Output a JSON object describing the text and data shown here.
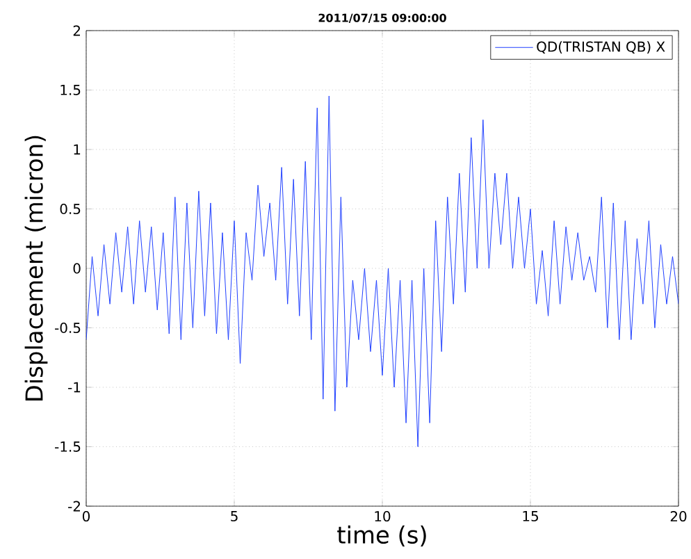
{
  "chart_data": {
    "type": "line",
    "title": "2011/07/15 09:00:00",
    "xlabel": "time (s)",
    "ylabel": "Displacement (micron)",
    "xlim": [
      0,
      20
    ],
    "ylim": [
      -2,
      2
    ],
    "xticks": [
      0,
      5,
      10,
      15,
      20
    ],
    "yticks": [
      -2,
      -1.5,
      -1,
      -0.5,
      0,
      0.5,
      1,
      1.5,
      2
    ],
    "grid": true,
    "legend": "top right",
    "marker": "none",
    "line_style": "solid",
    "series": [
      {
        "name": "QD(TRISTAN QB) X",
        "color": "#1f3fff",
        "x": [
          0,
          0.2,
          0.4,
          0.6,
          0.8,
          1,
          1.2,
          1.4,
          1.6,
          1.8,
          2,
          2.2,
          2.4,
          2.6,
          2.8,
          3,
          3.2,
          3.4,
          3.6,
          3.8,
          4,
          4.2,
          4.4,
          4.6,
          4.8,
          5,
          5.2,
          5.4,
          5.6,
          5.8,
          6,
          6.2,
          6.4,
          6.6,
          6.8,
          7,
          7.2,
          7.4,
          7.6,
          7.8,
          8,
          8.2,
          8.4,
          8.6,
          8.8,
          9,
          9.2,
          9.4,
          9.6,
          9.8,
          10,
          10.2,
          10.4,
          10.6,
          10.8,
          11,
          11.2,
          11.4,
          11.6,
          11.8,
          12,
          12.2,
          12.4,
          12.6,
          12.8,
          13,
          13.2,
          13.4,
          13.6,
          13.8,
          14,
          14.2,
          14.4,
          14.6,
          14.8,
          15,
          15.2,
          15.4,
          15.6,
          15.8,
          16,
          16.2,
          16.4,
          16.6,
          16.8,
          17,
          17.2,
          17.4,
          17.6,
          17.8,
          18,
          18.2,
          18.4,
          18.6,
          18.8,
          19,
          19.2,
          19.4,
          19.6,
          19.8,
          20
        ],
        "values": [
          -0.6,
          0.1,
          -0.4,
          0.2,
          -0.3,
          0.3,
          -0.2,
          0.35,
          -0.3,
          0.4,
          -0.2,
          0.35,
          -0.35,
          0.3,
          -0.55,
          0.6,
          -0.6,
          0.55,
          -0.5,
          0.65,
          -0.4,
          0.55,
          -0.55,
          0.3,
          -0.6,
          0.4,
          -0.8,
          0.3,
          -0.1,
          0.7,
          0.1,
          0.55,
          -0.1,
          0.85,
          -0.3,
          0.75,
          -0.4,
          0.9,
          -0.6,
          1.35,
          -1.1,
          1.45,
          -1.2,
          0.6,
          -1.0,
          -0.1,
          -0.6,
          0.0,
          -0.7,
          -0.1,
          -0.9,
          0.0,
          -1.0,
          -0.1,
          -1.3,
          -0.1,
          -1.5,
          0.0,
          -1.3,
          0.4,
          -0.7,
          0.6,
          -0.3,
          0.8,
          -0.2,
          1.1,
          0.0,
          1.25,
          0.0,
          0.8,
          0.2,
          0.8,
          0.0,
          0.6,
          0.0,
          0.5,
          -0.3,
          0.15,
          -0.4,
          0.4,
          -0.3,
          0.35,
          -0.1,
          0.3,
          -0.1,
          0.1,
          -0.2,
          0.6,
          -0.5,
          0.55,
          -0.6,
          0.4,
          -0.6,
          0.25,
          -0.3,
          0.4,
          -0.5,
          0.2,
          -0.3,
          0.1,
          -0.3
        ]
      }
    ]
  }
}
